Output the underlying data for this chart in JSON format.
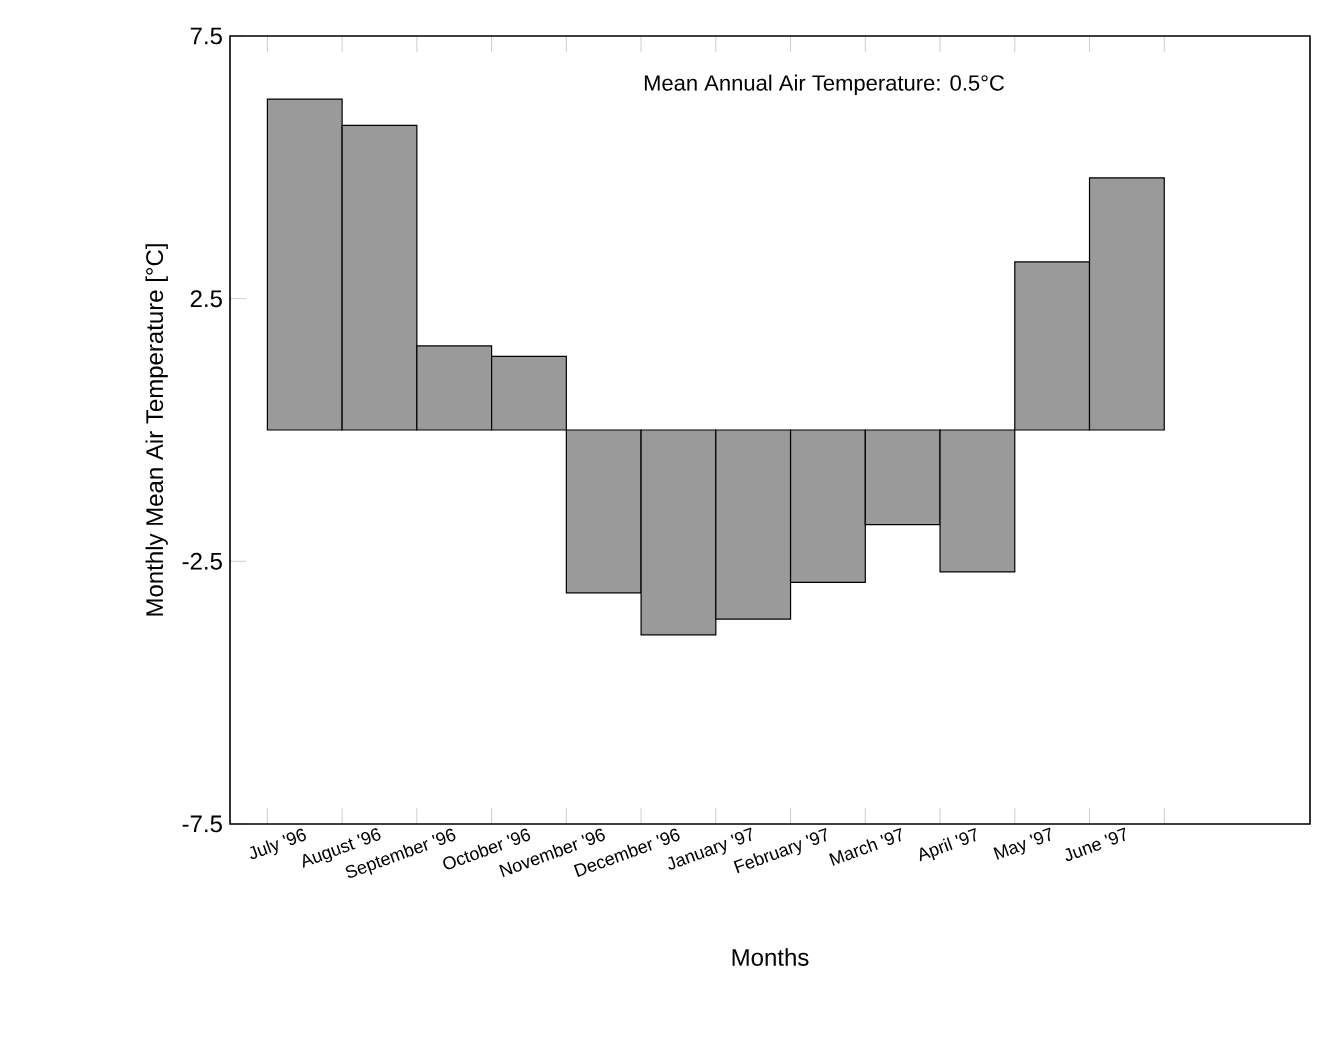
{
  "chart_data": {
    "type": "bar",
    "categories": [
      "July '96",
      "August '96",
      "September '96",
      "October '96",
      "November '96",
      "December '96",
      "January '97",
      "February '97",
      "March '97",
      "April '97",
      "May '97",
      "June '97"
    ],
    "values": [
      6.3,
      5.8,
      1.6,
      1.4,
      -3.1,
      -3.9,
      -3.6,
      -2.9,
      -1.8,
      -2.7,
      3.2,
      4.8
    ],
    "color": "#9a9a9a",
    "ylim": [
      -7.5,
      7.5
    ],
    "yticks": [
      -7.5,
      -2.5,
      2.5,
      7.5
    ],
    "xlabel": "Months",
    "ylabel": "Monthly Mean Air Temperature [°C]",
    "annotations": [
      "Mean Annual Air Temperature: 0.5°C"
    ]
  }
}
